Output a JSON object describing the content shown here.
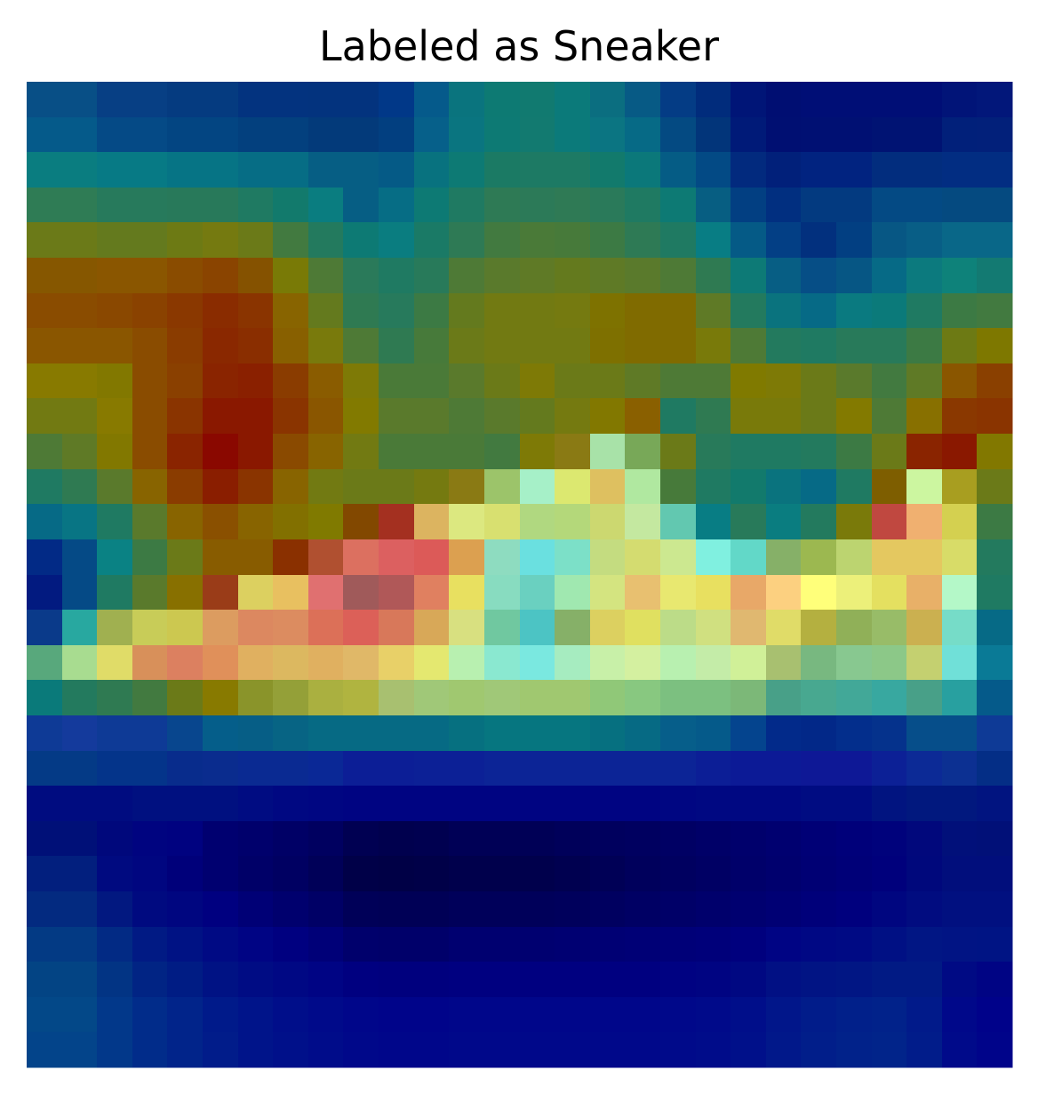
{
  "chart_data": {
    "type": "heatmap",
    "title": "Labeled as Sneaker",
    "xlabel": "",
    "ylabel": "",
    "axes_visible": false,
    "grid": false,
    "legend": "none",
    "colormap": "jet (overlaid on image)",
    "rows": 28,
    "cols": 28,
    "cells": [
      [
        "#084f86",
        "#084f86",
        "#073f84",
        "#073f84",
        "#053b80",
        "#053b80",
        "#03337f",
        "#03337f",
        "#03337e",
        "#03337e",
        "#013888",
        "#055a8b",
        "#0a747e",
        "#0d7a73",
        "#117a70",
        "#0b7a7a",
        "#0b6e80",
        "#075a85",
        "#043c85",
        "#012c7c",
        "#001577",
        "#000e72",
        "#000e76",
        "#000e76",
        "#000e76",
        "#000e76",
        "#011478",
        "#02177a"
      ],
      [
        "#055a8a",
        "#055a8a",
        "#054a86",
        "#054a86",
        "#034582",
        "#034582",
        "#03407e",
        "#03407e",
        "#033a7a",
        "#033a7a",
        "#023f80",
        "#06608a",
        "#0a7580",
        "#0d7a74",
        "#127a70",
        "#0b7a7a",
        "#0b7582",
        "#066a86",
        "#044a82",
        "#02357a",
        "#001a78",
        "#000f72",
        "#001073",
        "#001073",
        "#001373",
        "#001373",
        "#01207a",
        "#02207a"
      ],
      [
        "#0a7d80",
        "#0a7d80",
        "#077a85",
        "#077a85",
        "#067485",
        "#067485",
        "#066d85",
        "#066d85",
        "#065e84",
        "#065e84",
        "#055a86",
        "#08727f",
        "#0d7a74",
        "#1b7a64",
        "#1d7a64",
        "#1d7a64",
        "#127a6c",
        "#0b787a",
        "#055c85",
        "#034a85",
        "#022a7e",
        "#01207a",
        "#012380",
        "#012380",
        "#022d7e",
        "#022d7e",
        "#022d82",
        "#022d82"
      ],
      [
        "#2f7c55",
        "#2f7c55",
        "#277a5c",
        "#277a5c",
        "#28795a",
        "#28795a",
        "#1f7a62",
        "#127a6c",
        "#0a7d80",
        "#065e84",
        "#066d85",
        "#0d7a74",
        "#1f7a62",
        "#2e7a55",
        "#2c7a58",
        "#2f7a55",
        "#2a7a5a",
        "#1f7a62",
        "#0d7a74",
        "#075e82",
        "#023f82",
        "#012f80",
        "#033a80",
        "#033a80",
        "#044a84",
        "#044a84",
        "#054a80",
        "#054a80"
      ],
      [
        "#6b7a18",
        "#6b7a18",
        "#647a1e",
        "#647a1e",
        "#6d7a14",
        "#757a10",
        "#6b7a18",
        "#427a40",
        "#237a5e",
        "#0d7a74",
        "#0a7d80",
        "#1a7a66",
        "#2e7a55",
        "#427a40",
        "#4a7a38",
        "#477a3a",
        "#3c7a44",
        "#2e7a55",
        "#1f7a62",
        "#087d84",
        "#055a86",
        "#033f85",
        "#02307e",
        "#023f82",
        "#075784",
        "#085e86",
        "#096788",
        "#096788"
      ],
      [
        "#865700",
        "#865700",
        "#8a5600",
        "#8a5600",
        "#8a4c00",
        "#8a4400",
        "#855200",
        "#797a06",
        "#4e7a36",
        "#2a7a5a",
        "#1f7a62",
        "#287a5a",
        "#4e7a36",
        "#5a7a2c",
        "#5f7a26",
        "#647a1e",
        "#5f7a26",
        "#5a7a2c",
        "#4e7a36",
        "#2f7a52",
        "#0d7a76",
        "#075e84",
        "#064e86",
        "#065684",
        "#066a86",
        "#0c7a7e",
        "#0e827a",
        "#137a72"
      ],
      [
        "#8a4c00",
        "#8a4c00",
        "#8a4800",
        "#8a4200",
        "#8a3800",
        "#8a2c00",
        "#8a3400",
        "#886400",
        "#647a1e",
        "#2f7a52",
        "#277a5c",
        "#3c7a44",
        "#647a1e",
        "#727a12",
        "#727a12",
        "#757a10",
        "#7e7200",
        "#806b00",
        "#806b00",
        "#5f7a26",
        "#237a5e",
        "#0a737e",
        "#066a86",
        "#0a7a80",
        "#0b7a7a",
        "#1f7a62",
        "#3c7a44",
        "#427a40"
      ],
      [
        "#8a5600",
        "#8a5600",
        "#8a5600",
        "#8a4c00",
        "#8a3c00",
        "#8a2800",
        "#8a2e00",
        "#886000",
        "#797a0c",
        "#4e7a36",
        "#2f7a52",
        "#477a3a",
        "#6b7a18",
        "#727a12",
        "#727a12",
        "#727a12",
        "#7e7000",
        "#806b00",
        "#806b00",
        "#797a0a",
        "#4e7a36",
        "#237a5e",
        "#1f7a62",
        "#287a5a",
        "#287a5a",
        "#3c7a44",
        "#6d7a14",
        "#7e7800"
      ],
      [
        "#887a00",
        "#887a00",
        "#827800",
        "#8a4c00",
        "#8a4000",
        "#8a2400",
        "#8a2000",
        "#8a3c00",
        "#8a5c00",
        "#7e7a06",
        "#4a7a38",
        "#4a7a38",
        "#5a7a2c",
        "#6b7a18",
        "#7e7a06",
        "#6b7a18",
        "#6b7a18",
        "#5f7a26",
        "#4e7a36",
        "#4e7a36",
        "#807a00",
        "#7e7a06",
        "#6b7a18",
        "#5a7a2c",
        "#427a40",
        "#5f7a26",
        "#8a5600",
        "#8a4000"
      ],
      [
        "#727a12",
        "#727a12",
        "#887a00",
        "#8a4c00",
        "#8a3400",
        "#8a1800",
        "#8a1800",
        "#8a3400",
        "#8a5600",
        "#827a00",
        "#5a7a2c",
        "#5a7a2c",
        "#4e7a36",
        "#5a7a2c",
        "#647a1e",
        "#757a10",
        "#827800",
        "#8a6000",
        "#1f7a62",
        "#2f7a52",
        "#797a0a",
        "#797a0a",
        "#6b7a18",
        "#837a00",
        "#4e7a36",
        "#887000",
        "#8a3800",
        "#8a3400"
      ],
      [
        "#4e7a36",
        "#5f7a26",
        "#827800",
        "#8a4c00",
        "#8a2400",
        "#8a0800",
        "#8a1800",
        "#8a4a00",
        "#886400",
        "#727a12",
        "#4a7a38",
        "#4a7a38",
        "#4a7a38",
        "#427a40",
        "#7e7a06",
        "#8a7a14",
        "#a8e2a8",
        "#78a858",
        "#6b7a18",
        "#287a5a",
        "#1f7a62",
        "#1f7a62",
        "#237a5e",
        "#3c7a44",
        "#6b7a18",
        "#8a2400",
        "#8a1800",
        "#827800"
      ],
      [
        "#1f7a62",
        "#2f7a52",
        "#5a7a2c",
        "#886400",
        "#8a3c00",
        "#8a1e00",
        "#8a3400",
        "#886400",
        "#727a12",
        "#6b7a18",
        "#6b7a18",
        "#757a10",
        "#8a7a14",
        "#9cc46a",
        "#a6f0c8",
        "#dce870",
        "#dec060",
        "#b0e8a0",
        "#477a3a",
        "#1f7a62",
        "#127a6c",
        "#0a737e",
        "#066a86",
        "#1f7a62",
        "#7e5e00",
        "#ccf6a0",
        "#a89e20",
        "#6b7a18"
      ],
      [
        "#066a86",
        "#087584",
        "#1f7a62",
        "#5a7a2c",
        "#886400",
        "#8a5000",
        "#886400",
        "#827000",
        "#807a00",
        "#824800",
        "#a43020",
        "#dcb460",
        "#dce880",
        "#d8e070",
        "#b0d880",
        "#b4d87a",
        "#ccd870",
        "#c4e8a0",
        "#62c8b0",
        "#087d84",
        "#287a5a",
        "#0a7d80",
        "#237a5e",
        "#7a7a0a",
        "#c04840",
        "#f0b070",
        "#d4d050",
        "#3c7a44"
      ],
      [
        "#022a86",
        "#054a86",
        "#0a8284",
        "#3c7a44",
        "#6b7a18",
        "#885c00",
        "#885c00",
        "#8a3000",
        "#b05030",
        "#dc7060",
        "#dc6060",
        "#dc5a58",
        "#dca050",
        "#8edcc0",
        "#6ae0e0",
        "#7ce0c8",
        "#c4dc80",
        "#d4dc70",
        "#cce890",
        "#80f0e0",
        "#62d8c8",
        "#86b068",
        "#9cb850",
        "#bcd470",
        "#e4c860",
        "#e4c860",
        "#d8dc68",
        "#237a5e"
      ],
      [
        "#021a80",
        "#054a86",
        "#1f7a62",
        "#5a7a2c",
        "#887000",
        "#9a3c18",
        "#dcd060",
        "#e8c060",
        "#e07070",
        "#a05a5a",
        "#b05858",
        "#e08060",
        "#e8e060",
        "#88dcc0",
        "#6ad0c0",
        "#a0e8b0",
        "#d4e480",
        "#e8c070",
        "#e8e870",
        "#e8e060",
        "#e8a868",
        "#fcd080",
        "#ffff7a",
        "#ecf07a",
        "#e4e060",
        "#e8b068",
        "#b4f8c8",
        "#1f7a62"
      ],
      [
        "#0a3a8a",
        "#28a8a0",
        "#a0b050",
        "#c8cc58",
        "#ccc850",
        "#dc9c60",
        "#dc8860",
        "#dc8c60",
        "#dc7058",
        "#dc6058",
        "#d8785a",
        "#d8a858",
        "#d8e080",
        "#70c8a0",
        "#4cc4c4",
        "#86b068",
        "#dcd060",
        "#e0e060",
        "#bcdc88",
        "#d0e080",
        "#e0b870",
        "#e0dc68",
        "#b4b040",
        "#90b058",
        "#98bc68",
        "#cbb050",
        "#76dcc8",
        "#066a86"
      ],
      [
        "#58a87c",
        "#a8dc90",
        "#e0dc68",
        "#d8905a",
        "#dc8060",
        "#e0905a",
        "#e0b060",
        "#dcb860",
        "#e0b060",
        "#e0b868",
        "#e8d068",
        "#e4e870",
        "#b8f0b0",
        "#8ae8d0",
        "#7ae8e0",
        "#a6ecc0",
        "#c8f0a8",
        "#d4f0a0",
        "#b8f0b0",
        "#c4eca8",
        "#d0f098",
        "#a8c070",
        "#78b880",
        "#88c890",
        "#8cc888",
        "#c4d070",
        "#70e0d8",
        "#0a7a96"
      ],
      [
        "#0a7a7a",
        "#237a5e",
        "#2f7a52",
        "#427a40",
        "#6b7a18",
        "#887a00",
        "#8a942a",
        "#94a038",
        "#aab040",
        "#b0b440",
        "#a8c070",
        "#a0c878",
        "#a0c870",
        "#a0c878",
        "#a0c870",
        "#a0c870",
        "#90c878",
        "#88c880",
        "#7cc080",
        "#7cc080",
        "#7cb878",
        "#48a088",
        "#48a890",
        "#42a898",
        "#38a8a0",
        "#48a088",
        "#28a0a0",
        "#055a8a"
      ],
      [
        "#0e3a96",
        "#143a9c",
        "#0e3a96",
        "#0e3a96",
        "#08468e",
        "#055e8a",
        "#065e86",
        "#076484",
        "#066a84",
        "#066a84",
        "#066a84",
        "#066a84",
        "#067080",
        "#067680",
        "#067680",
        "#067680",
        "#067080",
        "#066a84",
        "#065e8a",
        "#055a8a",
        "#04448e",
        "#022a8a",
        "#022888",
        "#032e8c",
        "#05328c",
        "#064e8a",
        "#064e8a",
        "#0e3a96"
      ],
      [
        "#043a86",
        "#043a86",
        "#04348a",
        "#04348a",
        "#082c8c",
        "#0a2c8e",
        "#0a2a92",
        "#0a2a92",
        "#0a2896",
        "#0c1e96",
        "#0c1e96",
        "#0c2096",
        "#0c2096",
        "#0c2496",
        "#0c2496",
        "#0c2496",
        "#0c2496",
        "#0c2496",
        "#0c2496",
        "#0c1e96",
        "#0c1a96",
        "#0c1a96",
        "#0e1896",
        "#0e1896",
        "#0c2096",
        "#0c2a96",
        "#0c3092",
        "#042e86"
      ],
      [
        "#000c80",
        "#000c80",
        "#000c80",
        "#001080",
        "#001080",
        "#001080",
        "#000c82",
        "#000882",
        "#000682",
        "#000482",
        "#000482",
        "#000482",
        "#000482",
        "#000482",
        "#000482",
        "#000482",
        "#000482",
        "#000482",
        "#000682",
        "#000882",
        "#000882",
        "#000882",
        "#000c82",
        "#000c82",
        "#011480",
        "#01187e",
        "#01187e",
        "#011480"
      ],
      [
        "#001078",
        "#001078",
        "#00087c",
        "#000480",
        "#000280",
        "#000070",
        "#00006c",
        "#000066",
        "#000060",
        "#000052",
        "#00004e",
        "#000050",
        "#000056",
        "#000056",
        "#000056",
        "#00005a",
        "#00005e",
        "#000060",
        "#000064",
        "#000068",
        "#00006c",
        "#000070",
        "#000076",
        "#00007a",
        "#00027c",
        "#01087c",
        "#01107a",
        "#011078"
      ],
      [
        "#021f7e",
        "#021f7e",
        "#000a80",
        "#000680",
        "#00007a",
        "#000070",
        "#000068",
        "#000062",
        "#000058",
        "#000048",
        "#000046",
        "#000048",
        "#00004c",
        "#00004c",
        "#00004c",
        "#000050",
        "#000056",
        "#00005c",
        "#000060",
        "#000064",
        "#00006a",
        "#00006e",
        "#000074",
        "#000078",
        "#00007c",
        "#00087c",
        "#010e7c",
        "#010e7c"
      ],
      [
        "#032a80",
        "#032a80",
        "#021880",
        "#000a80",
        "#000680",
        "#000080",
        "#000076",
        "#00006e",
        "#000066",
        "#000058",
        "#000056",
        "#000056",
        "#00005a",
        "#00005a",
        "#00005a",
        "#00005c",
        "#000060",
        "#000064",
        "#000068",
        "#00006c",
        "#000070",
        "#000074",
        "#00007a",
        "#00007e",
        "#000680",
        "#010c80",
        "#011080",
        "#011080"
      ],
      [
        "#033a84",
        "#033a84",
        "#022a84",
        "#011a84",
        "#001284",
        "#000a84",
        "#000484",
        "#000080",
        "#000078",
        "#00006c",
        "#00006a",
        "#00006a",
        "#000070",
        "#000070",
        "#000070",
        "#000072",
        "#000074",
        "#000076",
        "#000078",
        "#00007a",
        "#00007e",
        "#000484",
        "#000884",
        "#000a84",
        "#001084",
        "#011684",
        "#011484",
        "#001484"
      ],
      [
        "#034484",
        "#034484",
        "#023484",
        "#012484",
        "#001c84",
        "#001284",
        "#000c84",
        "#000884",
        "#000484",
        "#000080",
        "#00007e",
        "#00007e",
        "#000080",
        "#000080",
        "#000080",
        "#000080",
        "#000080",
        "#000080",
        "#000282",
        "#000482",
        "#000882",
        "#011084",
        "#011484",
        "#011684",
        "#011a84",
        "#011a84",
        "#000a84",
        "#000484"
      ],
      [
        "#034888",
        "#034888",
        "#02388a",
        "#012c8a",
        "#01248a",
        "#001a8a",
        "#00148a",
        "#000e8a",
        "#000a8a",
        "#00068a",
        "#00048a",
        "#00048a",
        "#00068a",
        "#00068a",
        "#00068a",
        "#00068a",
        "#00068a",
        "#00068a",
        "#00088a",
        "#000a8a",
        "#000e8a",
        "#01168a",
        "#011c8a",
        "#01208a",
        "#01228a",
        "#011a8a",
        "#00088a",
        "#00028a"
      ],
      [
        "#03448a",
        "#03448a",
        "#02388a",
        "#012c8a",
        "#01248a",
        "#011c8a",
        "#00148a",
        "#00108a",
        "#000c8a",
        "#00088a",
        "#00068a",
        "#00068a",
        "#00088a",
        "#00088a",
        "#00088a",
        "#00088a",
        "#00088a",
        "#00088a",
        "#000a8a",
        "#000c8a",
        "#00108a",
        "#01188a",
        "#011e8a",
        "#01228a",
        "#01248a",
        "#011c8a",
        "#000a8a",
        "#00048a"
      ]
    ]
  }
}
